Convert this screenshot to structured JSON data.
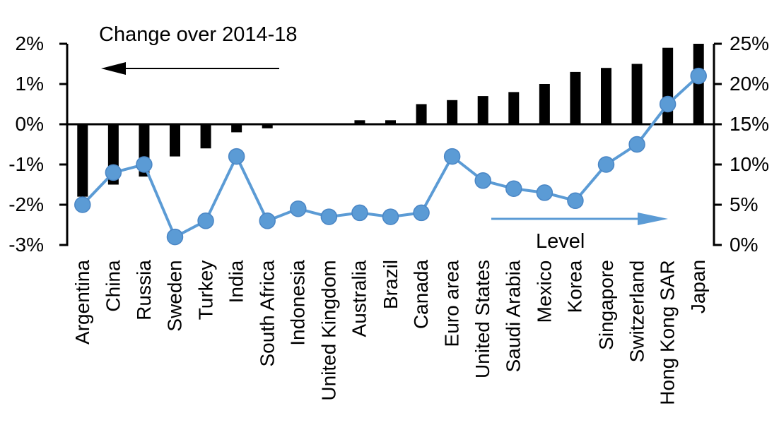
{
  "chart": {
    "bar_series_annotation": "Change over 2014-18",
    "line_series_annotation": "Level"
  },
  "chart_data": {
    "type": "bar",
    "subtype": "bar-and-line-dual-axis",
    "categories": [
      "Argentina",
      "China",
      "Russia",
      "Sweden",
      "Turkey",
      "India",
      "South Africa",
      "Indonesia",
      "United Kingdom",
      "Australia",
      "Brazil",
      "Canada",
      "Euro area",
      "United States",
      "Saudi Arabia",
      "Mexico",
      "Korea",
      "Singapore",
      "Switzerland",
      "Hong Kong SAR",
      "Japan"
    ],
    "series": [
      {
        "name": "Change over 2014-18",
        "type": "bar",
        "axis": "left",
        "color": "#000000",
        "values": [
          -1.8,
          -1.5,
          -1.3,
          -0.8,
          -0.6,
          -0.2,
          -0.1,
          0,
          0,
          0.1,
          0.1,
          0.5,
          0.6,
          0.7,
          0.8,
          1.0,
          1.3,
          1.4,
          1.5,
          1.9,
          2.0
        ]
      },
      {
        "name": "Level",
        "type": "line",
        "axis": "right",
        "color": "#5B9BD5",
        "values": [
          5,
          9,
          10,
          1,
          3,
          11,
          3,
          4.5,
          3.5,
          4,
          3.5,
          4,
          11,
          8,
          7,
          6.5,
          5.5,
          10,
          12.5,
          17.5,
          21
        ]
      }
    ],
    "left_axis": {
      "min": -3,
      "max": 2,
      "tick_step": 1,
      "tick_labels": [
        "2%",
        "1%",
        "0%",
        "-1%",
        "-2%",
        "-3%"
      ]
    },
    "right_axis": {
      "min": 0,
      "max": 25,
      "tick_step": 5,
      "tick_labels": [
        "25%",
        "20%",
        "15%",
        "10%",
        "5%",
        "0%"
      ]
    },
    "grid": false,
    "legend": "arrow annotations inside plot",
    "annotations": [
      {
        "text": "Change over 2014-18",
        "arrow": "left",
        "color": "#000000"
      },
      {
        "text": "Level",
        "arrow": "right",
        "color": "#5B9BD5"
      }
    ]
  }
}
